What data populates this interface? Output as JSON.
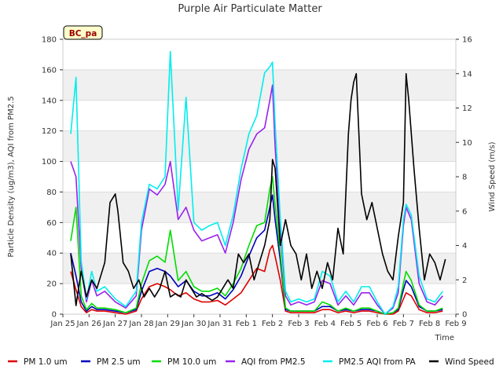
{
  "chart_data": {
    "type": "line",
    "title": "Purple Air Particulate Matter",
    "xlabel": "Time",
    "ylabel": "Particle Density (ug/m3), AQI from PM2.5",
    "y2label": "Wind Speed (m/s)",
    "site_badge": "BC_pa",
    "ylim": [
      0,
      180
    ],
    "y2lim": [
      0,
      16
    ],
    "xlim": [
      0,
      15
    ],
    "yticks": [
      0,
      20,
      40,
      60,
      80,
      100,
      120,
      140,
      160,
      180
    ],
    "y2ticks": [
      0,
      2,
      4,
      6,
      8,
      10,
      12,
      14,
      16
    ],
    "xticks": [
      {
        "x": 0,
        "label": "Jan 25"
      },
      {
        "x": 1,
        "label": "Jan 26"
      },
      {
        "x": 2,
        "label": "Jan 27"
      },
      {
        "x": 3,
        "label": "Jan 28"
      },
      {
        "x": 4,
        "label": "Jan 29"
      },
      {
        "x": 5,
        "label": "Jan 30"
      },
      {
        "x": 6,
        "label": "Jan 31"
      },
      {
        "x": 7,
        "label": "Feb 1"
      },
      {
        "x": 8,
        "label": "Feb 2"
      },
      {
        "x": 9,
        "label": "Feb 3"
      },
      {
        "x": 10,
        "label": "Feb 4"
      },
      {
        "x": 11,
        "label": "Feb 5"
      },
      {
        "x": 12,
        "label": "Feb 6"
      },
      {
        "x": 13,
        "label": "Feb 7"
      },
      {
        "x": 14,
        "label": "Feb 8"
      },
      {
        "x": 15,
        "label": "Feb 9"
      }
    ],
    "grid": true,
    "legend_position": "bottom",
    "series": [
      {
        "name": "PM 1.0 um",
        "color": "#dd0000",
        "axis": "left",
        "x": [
          0.3,
          0.5,
          0.7,
          0.9,
          1.1,
          1.3,
          1.6,
          2.0,
          2.4,
          2.8,
          3.0,
          3.3,
          3.6,
          3.9,
          4.1,
          4.4,
          4.7,
          5.0,
          5.3,
          5.6,
          5.9,
          6.2,
          6.5,
          6.8,
          7.1,
          7.4,
          7.7,
          7.9,
          8.0,
          8.1,
          8.3,
          8.5,
          8.7,
          9.0,
          9.3,
          9.6,
          9.9,
          10.2,
          10.5,
          10.8,
          11.1,
          11.4,
          11.7,
          12.0,
          12.3,
          12.6,
          12.8,
          13.0,
          13.1,
          13.3,
          13.6,
          13.9,
          14.2,
          14.5
        ],
        "values": [
          28,
          16,
          5,
          1,
          3,
          2,
          2,
          1,
          0,
          2,
          10,
          18,
          20,
          18,
          16,
          12,
          14,
          10,
          8,
          8,
          9,
          6,
          10,
          14,
          22,
          30,
          28,
          42,
          45,
          38,
          22,
          2,
          1,
          1,
          1,
          1,
          3,
          3,
          1,
          2,
          1,
          2,
          2,
          1,
          0,
          0,
          2,
          10,
          14,
          12,
          3,
          1,
          1,
          2
        ]
      },
      {
        "name": "PM 2.5 um",
        "color": "#0000bb",
        "axis": "left",
        "x": [
          0.3,
          0.5,
          0.7,
          0.9,
          1.1,
          1.3,
          1.6,
          2.0,
          2.4,
          2.8,
          3.0,
          3.3,
          3.6,
          3.9,
          4.1,
          4.4,
          4.7,
          5.0,
          5.3,
          5.6,
          5.9,
          6.2,
          6.5,
          6.8,
          7.1,
          7.4,
          7.7,
          7.9,
          8.0,
          8.1,
          8.3,
          8.5,
          8.7,
          9.0,
          9.3,
          9.6,
          9.9,
          10.2,
          10.5,
          10.8,
          11.1,
          11.4,
          11.7,
          12.0,
          12.3,
          12.6,
          12.8,
          13.0,
          13.1,
          13.3,
          13.6,
          13.9,
          14.2,
          14.5
        ],
        "values": [
          40,
          25,
          8,
          2,
          5,
          3,
          3,
          2,
          1,
          3,
          15,
          28,
          30,
          28,
          25,
          18,
          22,
          15,
          12,
          12,
          14,
          10,
          16,
          25,
          38,
          50,
          55,
          70,
          78,
          62,
          35,
          3,
          2,
          2,
          2,
          2,
          5,
          5,
          2,
          3,
          2,
          3,
          3,
          2,
          0,
          1,
          3,
          16,
          22,
          18,
          5,
          2,
          2,
          3
        ]
      },
      {
        "name": "PM 10.0 um",
        "color": "#00dd00",
        "axis": "left",
        "x": [
          0.3,
          0.5,
          0.7,
          0.9,
          1.1,
          1.3,
          1.6,
          2.0,
          2.4,
          2.8,
          3.0,
          3.3,
          3.6,
          3.9,
          4.1,
          4.4,
          4.7,
          5.0,
          5.3,
          5.6,
          5.9,
          6.2,
          6.5,
          6.8,
          7.1,
          7.4,
          7.7,
          7.9,
          8.0,
          8.1,
          8.3,
          8.5,
          8.7,
          9.0,
          9.3,
          9.6,
          9.9,
          10.2,
          10.5,
          10.8,
          11.1,
          11.4,
          11.7,
          12.0,
          12.3,
          12.6,
          12.8,
          13.0,
          13.1,
          13.3,
          13.6,
          13.9,
          14.2,
          14.5
        ],
        "values": [
          48,
          70,
          12,
          3,
          7,
          4,
          4,
          3,
          1,
          4,
          20,
          35,
          38,
          34,
          55,
          22,
          28,
          18,
          15,
          15,
          17,
          12,
          20,
          30,
          45,
          58,
          60,
          82,
          90,
          72,
          40,
          4,
          2,
          2,
          2,
          2,
          8,
          6,
          2,
          4,
          2,
          4,
          4,
          2,
          0,
          1,
          4,
          20,
          28,
          22,
          6,
          2,
          2,
          4
        ]
      },
      {
        "name": "AQI from PM2.5",
        "color": "#9922ee",
        "axis": "left",
        "x": [
          0.3,
          0.5,
          0.7,
          0.9,
          1.1,
          1.3,
          1.6,
          2.0,
          2.4,
          2.8,
          3.0,
          3.3,
          3.6,
          3.9,
          4.1,
          4.4,
          4.7,
          5.0,
          5.3,
          5.6,
          5.9,
          6.2,
          6.5,
          6.8,
          7.1,
          7.4,
          7.7,
          7.9,
          8.0,
          8.1,
          8.3,
          8.5,
          8.7,
          9.0,
          9.3,
          9.6,
          9.9,
          10.2,
          10.5,
          10.8,
          11.1,
          11.4,
          11.7,
          12.0,
          12.3,
          12.6,
          12.8,
          13.0,
          13.1,
          13.3,
          13.6,
          13.9,
          14.2,
          14.5
        ],
        "values": [
          100,
          90,
          30,
          8,
          22,
          12,
          15,
          8,
          4,
          12,
          55,
          82,
          78,
          85,
          100,
          62,
          70,
          55,
          48,
          50,
          52,
          40,
          60,
          88,
          108,
          118,
          122,
          140,
          150,
          110,
          55,
          12,
          6,
          8,
          6,
          8,
          22,
          20,
          6,
          12,
          6,
          14,
          14,
          6,
          0,
          4,
          14,
          58,
          70,
          62,
          20,
          8,
          6,
          12
        ]
      },
      {
        "name": "PM2.5 AQI from PA",
        "color": "#00eeee",
        "axis": "left",
        "x": [
          0.3,
          0.5,
          0.7,
          0.9,
          1.1,
          1.3,
          1.6,
          2.0,
          2.4,
          2.8,
          3.0,
          3.3,
          3.6,
          3.9,
          4.1,
          4.4,
          4.7,
          5.0,
          5.3,
          5.6,
          5.9,
          6.2,
          6.5,
          6.8,
          7.1,
          7.4,
          7.7,
          7.9,
          8.0,
          8.1,
          8.3,
          8.5,
          8.7,
          9.0,
          9.3,
          9.6,
          9.9,
          10.2,
          10.5,
          10.8,
          11.1,
          11.4,
          11.7,
          12.0,
          12.3,
          12.6,
          12.8,
          13.0,
          13.1,
          13.3,
          13.6,
          13.9,
          14.2,
          14.5
        ],
        "values": [
          118,
          155,
          35,
          10,
          28,
          15,
          18,
          10,
          5,
          15,
          60,
          85,
          82,
          90,
          172,
          68,
          142,
          60,
          55,
          58,
          60,
          45,
          65,
          95,
          118,
          130,
          158,
          162,
          165,
          125,
          62,
          15,
          8,
          10,
          8,
          10,
          28,
          25,
          8,
          15,
          8,
          18,
          18,
          8,
          0,
          5,
          18,
          62,
          72,
          65,
          25,
          10,
          8,
          15
        ]
      },
      {
        "name": "Wind Speed",
        "color": "#000000",
        "axis": "right",
        "x": [
          0.3,
          0.5,
          0.7,
          0.9,
          1.1,
          1.3,
          1.6,
          1.8,
          2.0,
          2.1,
          2.3,
          2.5,
          2.7,
          2.9,
          3.1,
          3.3,
          3.5,
          3.7,
          3.9,
          4.1,
          4.3,
          4.5,
          4.7,
          4.9,
          5.1,
          5.3,
          5.5,
          5.7,
          5.9,
          6.1,
          6.3,
          6.5,
          6.7,
          6.9,
          7.1,
          7.3,
          7.5,
          7.7,
          7.9,
          8.0,
          8.1,
          8.3,
          8.5,
          8.7,
          8.9,
          9.1,
          9.3,
          9.5,
          9.7,
          9.9,
          10.1,
          10.3,
          10.5,
          10.7,
          10.9,
          11.0,
          11.1,
          11.2,
          11.4,
          11.6,
          11.8,
          12.0,
          12.2,
          12.4,
          12.6,
          12.8,
          13.0,
          13.1,
          13.2,
          13.4,
          13.6,
          13.8,
          14.0,
          14.2,
          14.4,
          14.6
        ],
        "values": [
          3.5,
          0.5,
          2.5,
          1.0,
          2.0,
          1.5,
          3.0,
          6.5,
          7.0,
          6.0,
          3.0,
          2.5,
          1.5,
          2.0,
          1.0,
          1.5,
          1.0,
          1.5,
          2.5,
          1.0,
          1.2,
          1.0,
          2.0,
          1.5,
          1.0,
          1.2,
          1.0,
          0.8,
          1.0,
          1.5,
          2.0,
          1.5,
          3.5,
          3.0,
          3.5,
          2.0,
          3.0,
          4.0,
          5.5,
          9.0,
          8.5,
          4.0,
          5.5,
          4.0,
          3.5,
          2.0,
          3.5,
          1.5,
          2.5,
          1.5,
          3.0,
          2.0,
          5.0,
          3.5,
          10.5,
          12.5,
          13.5,
          14.0,
          7.0,
          5.5,
          6.5,
          5.0,
          3.5,
          2.5,
          2.0,
          4.5,
          6.5,
          14.0,
          12.5,
          8.5,
          5.0,
          2.0,
          3.5,
          3.0,
          2.0,
          3.2
        ]
      }
    ]
  }
}
